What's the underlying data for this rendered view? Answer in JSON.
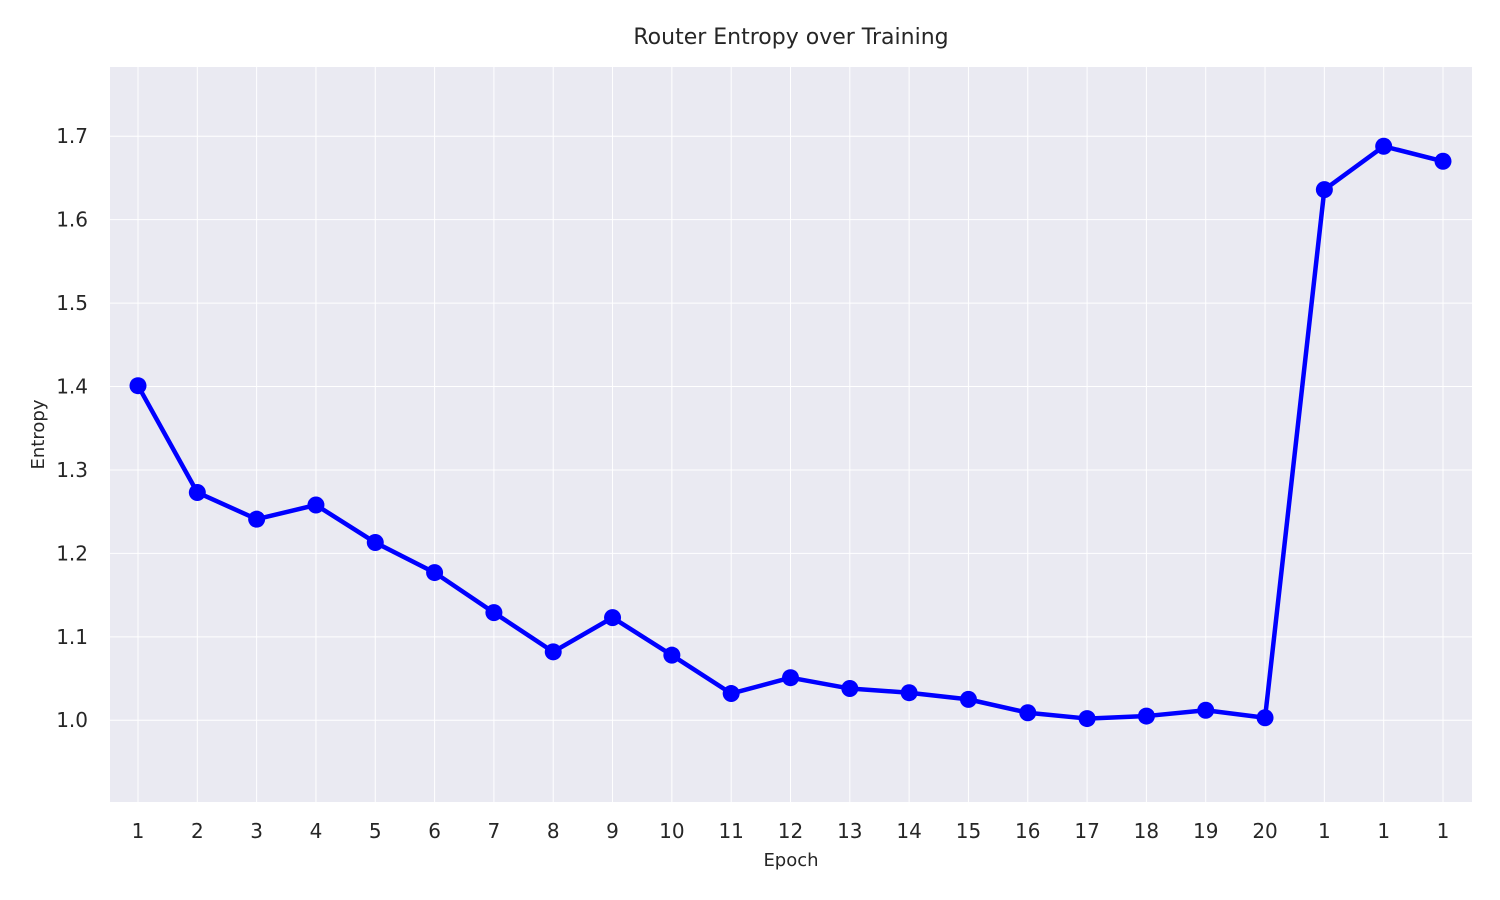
{
  "chart_data": {
    "type": "line",
    "title": "Router Entropy over Training",
    "xlabel": "Epoch",
    "ylabel": "Entropy",
    "categories": [
      "1",
      "2",
      "3",
      "4",
      "5",
      "6",
      "7",
      "8",
      "9",
      "10",
      "11",
      "12",
      "13",
      "14",
      "15",
      "16",
      "17",
      "18",
      "19",
      "20",
      "1",
      "1",
      "1"
    ],
    "series": [
      {
        "values": [
          1.401,
          1.273,
          1.241,
          1.258,
          1.213,
          1.177,
          1.129,
          1.082,
          1.123,
          1.078,
          1.032,
          1.051,
          1.038,
          1.033,
          1.025,
          1.009,
          1.002,
          1.005,
          1.012,
          1.003,
          1.636,
          1.688,
          1.67
        ],
        "color": "#0000ff"
      }
    ],
    "ylim": [
      0.902,
      1.783
    ],
    "yticks": [
      "1.0",
      "1.1",
      "1.2",
      "1.3",
      "1.4",
      "1.5",
      "1.6",
      "1.7"
    ],
    "grid": true,
    "legend": "none",
    "colors": {
      "plot_background": "#eaeaf2",
      "grid": "#ffffff",
      "line": "#0000ff"
    }
  }
}
